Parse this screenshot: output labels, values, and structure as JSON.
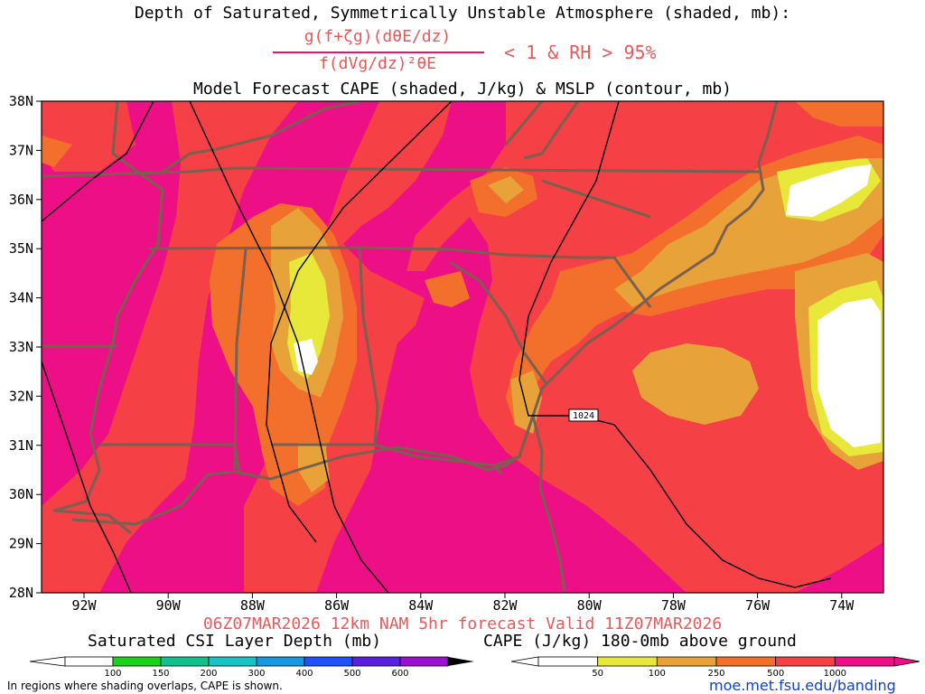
{
  "header": {
    "title": "Depth of Saturated, Symmetrically Unstable Atmosphere (shaded, mb):",
    "fraction_numerator": "g(f+ζg)(dθE/dz)",
    "fraction_denominator": "f(dVg/dz)²θE",
    "condition": "< 1 & RH > 95%",
    "subtitle": "Model Forecast CAPE (shaded, J/kg) & MSLP (contour, mb)"
  },
  "map": {
    "lat_labels": [
      "38N",
      "37N",
      "36N",
      "35N",
      "34N",
      "33N",
      "32N",
      "31N",
      "30N",
      "29N",
      "28N"
    ],
    "lon_labels": [
      "92W",
      "90W",
      "88W",
      "86W",
      "84W",
      "82W",
      "80W",
      "78W",
      "76W",
      "74W"
    ],
    "contour_label": "1024",
    "colors": {
      "cape_1000plus": "#ec0f85",
      "cape_500": "#f54045",
      "cape_250": "#f3702c",
      "cape_100": "#e8a23a",
      "cape_50": "#e8e83a",
      "under_50": "#ffffff",
      "borders": "#7a6050",
      "isobars": "#000000"
    }
  },
  "footer": {
    "valid_line": "06Z07MAR2026 12km NAM 5hr forecast Valid 11Z07MAR2026",
    "csi_title": "Saturated CSI Layer Depth (mb)",
    "csi_ticks": [
      "100",
      "150",
      "200",
      "300",
      "400",
      "500",
      "600"
    ],
    "csi_colors": [
      "#1dd01d",
      "#12c08e",
      "#16c4c4",
      "#1699e0",
      "#2050ff",
      "#5a1ee0",
      "#9a10d0"
    ],
    "cape_title": "CAPE (J/kg) 180-0mb above ground",
    "cape_ticks": [
      "50",
      "100",
      "250",
      "500",
      "1000"
    ],
    "cape_colors": [
      "#e8e83a",
      "#e8a23a",
      "#f3702c",
      "#f54045"
    ],
    "note": "In regions where shading overlaps, CAPE is shown.",
    "url": "moe.met.fsu.edu/banding"
  }
}
